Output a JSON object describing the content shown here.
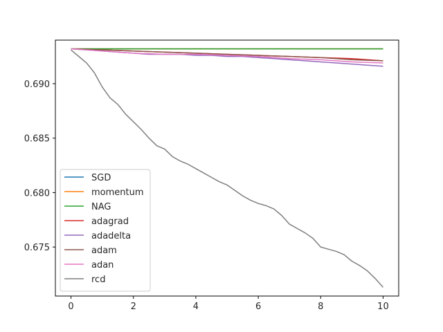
{
  "chart_data": {
    "type": "line",
    "title": "",
    "xlabel": "",
    "ylabel": "",
    "xlim": [
      -0.5,
      10.5
    ],
    "ylim": [
      0.6705,
      0.694
    ],
    "grid": false,
    "legend_placement": "lower-left",
    "x_ticks": [
      0,
      2,
      4,
      6,
      8,
      10
    ],
    "y_ticks": [
      0.675,
      0.68,
      0.685,
      0.69
    ],
    "x_tick_labels": [
      "0",
      "2",
      "4",
      "6",
      "8",
      "10"
    ],
    "y_tick_labels": [
      "0.675",
      "0.680",
      "0.685",
      "0.690"
    ],
    "series": [
      {
        "name": "SGD",
        "color": "#1f77b4",
        "x": [
          0,
          10
        ],
        "y": [
          0.6932,
          0.6932
        ]
      },
      {
        "name": "momentum",
        "color": "#ff7f0e",
        "x": [
          0,
          10
        ],
        "y": [
          0.6932,
          0.6932
        ]
      },
      {
        "name": "NAG",
        "color": "#2ca02c",
        "x": [
          0,
          10
        ],
        "y": [
          0.6932,
          0.6932
        ]
      },
      {
        "name": "adagrad",
        "color": "#d62728",
        "x": [
          0,
          1,
          2,
          3,
          4,
          5,
          6,
          7,
          8,
          9,
          10
        ],
        "y": [
          0.6932,
          0.6931,
          0.693,
          0.6929,
          0.6928,
          0.6927,
          0.6926,
          0.6925,
          0.6924,
          0.6923,
          0.6921
        ]
      },
      {
        "name": "adadelta",
        "color": "#9467bd",
        "x": [
          0,
          0.5,
          1,
          1.5,
          2,
          2.5,
          3,
          3.5,
          4,
          4.5,
          5,
          5.5,
          6,
          6.5,
          7,
          7.5,
          8,
          8.5,
          9,
          9.5,
          10
        ],
        "y": [
          0.6932,
          0.6931,
          0.693,
          0.6929,
          0.6928,
          0.6927,
          0.6927,
          0.6927,
          0.6926,
          0.6926,
          0.6925,
          0.6925,
          0.6924,
          0.6923,
          0.6922,
          0.6921,
          0.692,
          0.6919,
          0.6918,
          0.6917,
          0.6916
        ]
      },
      {
        "name": "adam",
        "color": "#8c564b",
        "x": [
          0,
          1,
          2,
          3,
          4,
          5,
          6,
          7,
          8,
          9,
          10
        ],
        "y": [
          0.6932,
          0.6931,
          0.693,
          0.6929,
          0.6928,
          0.6927,
          0.6926,
          0.6925,
          0.6924,
          0.6922,
          0.6921
        ]
      },
      {
        "name": "adan",
        "color": "#e377c2",
        "x": [
          0,
          1,
          2,
          3,
          4,
          5,
          6,
          7,
          8,
          9,
          10
        ],
        "y": [
          0.6932,
          0.693,
          0.6928,
          0.6927,
          0.6927,
          0.6926,
          0.6925,
          0.6923,
          0.6922,
          0.692,
          0.6919
        ]
      },
      {
        "name": "rcd",
        "color": "#7f7f7f",
        "x": [
          0,
          0.25,
          0.5,
          0.75,
          1.0,
          1.25,
          1.5,
          1.75,
          2.0,
          2.25,
          2.5,
          2.75,
          3.0,
          3.25,
          3.5,
          3.75,
          4.0,
          4.25,
          4.5,
          4.75,
          5.0,
          5.25,
          5.5,
          5.75,
          6.0,
          6.25,
          6.5,
          6.75,
          7.0,
          7.25,
          7.5,
          7.75,
          8.0,
          8.25,
          8.5,
          8.75,
          9.0,
          9.25,
          9.5,
          9.75,
          10.0
        ],
        "y": [
          0.6931,
          0.6925,
          0.6919,
          0.691,
          0.6897,
          0.6887,
          0.6881,
          0.6872,
          0.6865,
          0.6858,
          0.685,
          0.6843,
          0.684,
          0.6833,
          0.6829,
          0.6826,
          0.6822,
          0.6818,
          0.6814,
          0.681,
          0.6807,
          0.6802,
          0.6797,
          0.6793,
          0.679,
          0.6788,
          0.6785,
          0.6779,
          0.6771,
          0.6767,
          0.6763,
          0.6758,
          0.675,
          0.6748,
          0.6746,
          0.6743,
          0.6737,
          0.6733,
          0.6728,
          0.6721,
          0.6713
        ]
      }
    ]
  }
}
